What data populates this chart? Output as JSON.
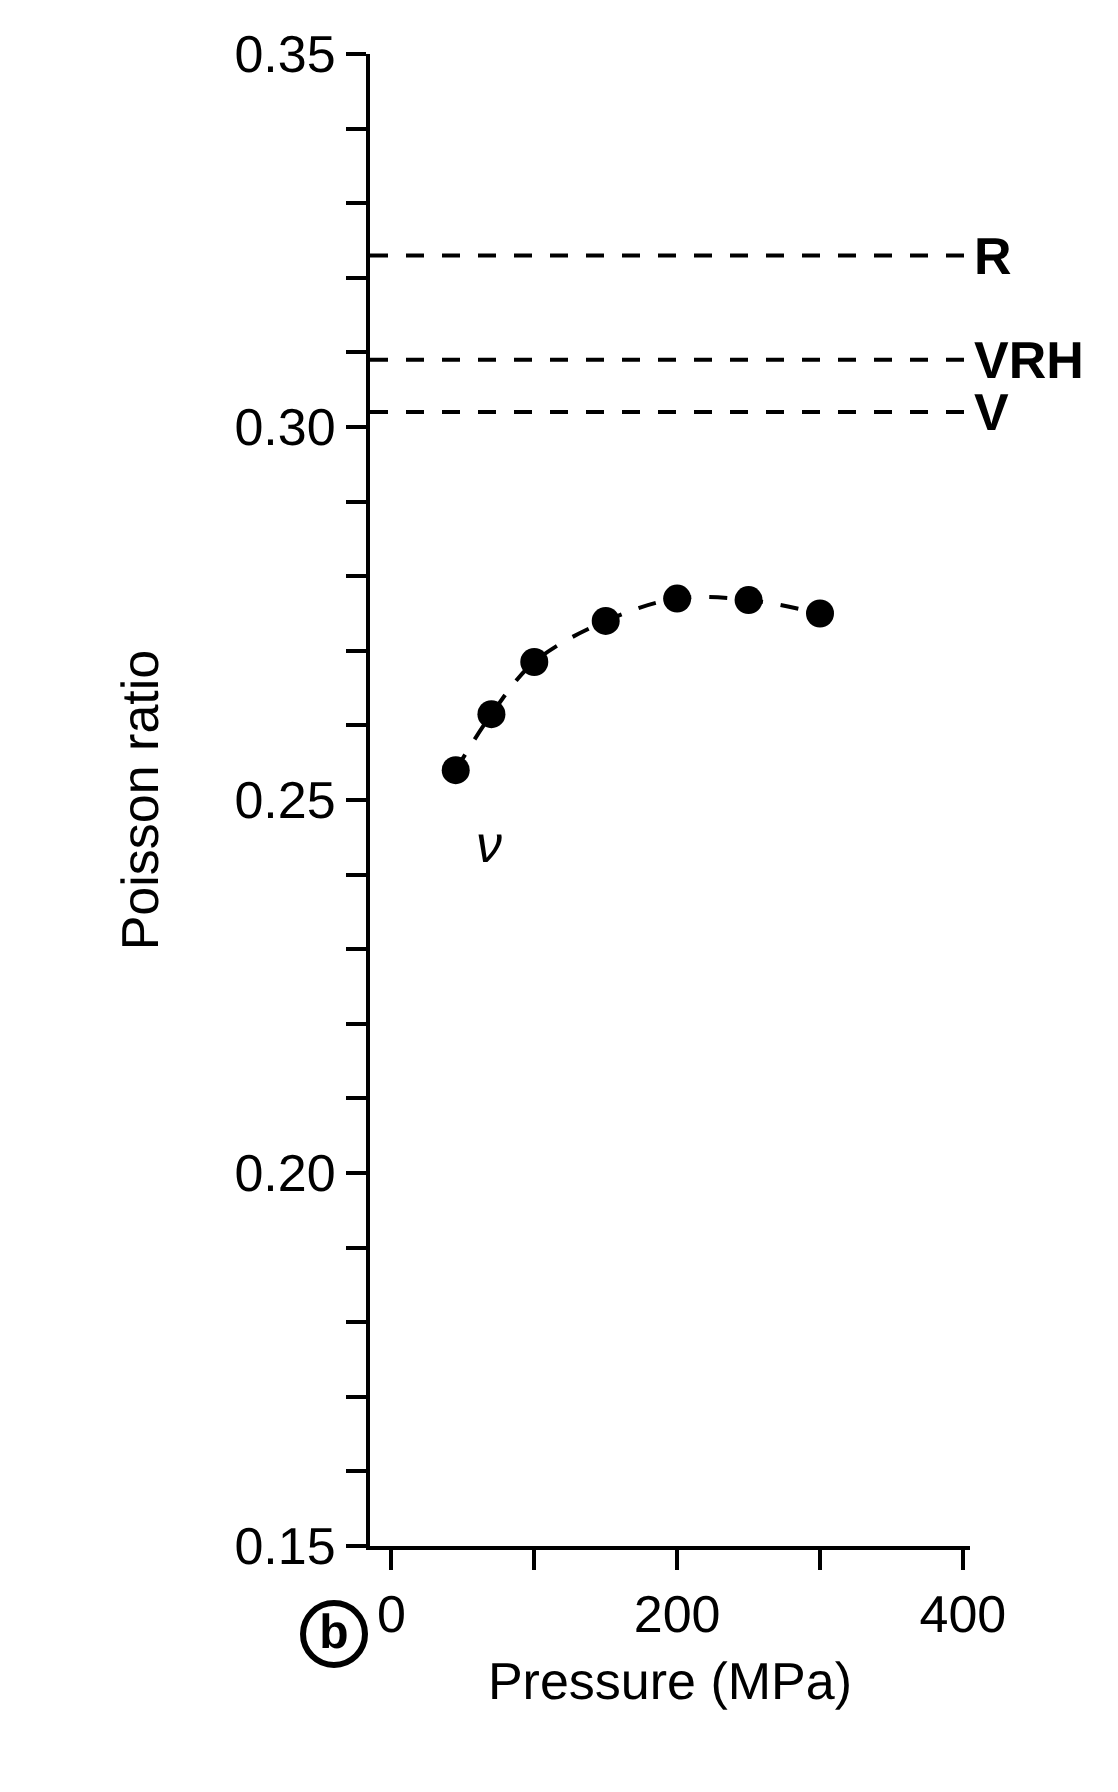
{
  "chart_data": {
    "type": "line",
    "xlabel": "Pressure (MPa)",
    "ylabel": "Poisson ratio",
    "x": [
      45,
      70,
      100,
      150,
      200,
      250,
      300
    ],
    "series": [
      {
        "color": "#000000",
        "values": [
          0.254,
          0.2615,
          0.2685,
          0.274,
          0.277,
          0.2768,
          0.275
        ]
      }
    ],
    "marker": "circle",
    "line_style": "dashed",
    "grid": false,
    "xlim": [
      -15,
      405
    ],
    "ylim": [
      0.15,
      0.35
    ],
    "xticks": [
      0,
      {
        "value": 100,
        "label": null
      },
      200,
      {
        "value": 300,
        "label": null
      },
      400
    ],
    "yticks": [
      {
        "value": 0.15,
        "label": "0.15"
      },
      {
        "value": 0.16,
        "label": null
      },
      {
        "value": 0.17,
        "label": null
      },
      {
        "value": 0.18,
        "label": null
      },
      {
        "value": 0.19,
        "label": null
      },
      {
        "value": 0.2,
        "label": "0.20"
      },
      {
        "value": 0.21,
        "label": null
      },
      {
        "value": 0.22,
        "label": null
      },
      {
        "value": 0.23,
        "label": null
      },
      {
        "value": 0.24,
        "label": null
      },
      {
        "value": 0.25,
        "label": "0.25"
      },
      {
        "value": 0.26,
        "label": null
      },
      {
        "value": 0.27,
        "label": null
      },
      {
        "value": 0.28,
        "label": null
      },
      {
        "value": 0.29,
        "label": null
      },
      {
        "value": 0.3,
        "label": "0.30"
      },
      {
        "value": 0.31,
        "label": null
      },
      {
        "value": 0.32,
        "label": null
      },
      {
        "value": 0.33,
        "label": null
      },
      {
        "value": 0.34,
        "label": null
      },
      {
        "value": 0.35,
        "label": "0.35"
      }
    ],
    "ref_lines": [
      {
        "axis": "y",
        "value": 0.323,
        "label": "R",
        "line_style": "dashed",
        "color": "#000000"
      },
      {
        "axis": "y",
        "value": 0.309,
        "label": "VRH",
        "line_style": "dashed",
        "color": "#000000"
      },
      {
        "axis": "y",
        "value": 0.302,
        "label": "V",
        "line_style": "dashed",
        "color": "#000000"
      }
    ],
    "annotations": [
      "ν",
      "b"
    ]
  }
}
